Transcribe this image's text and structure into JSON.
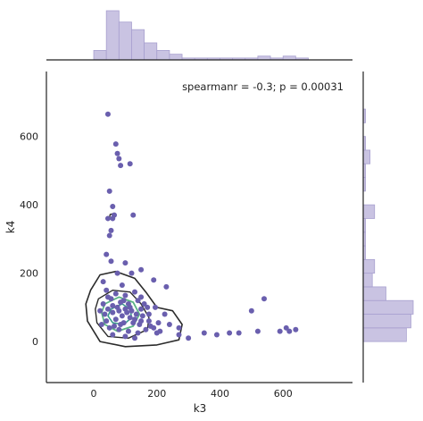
{
  "chart_data": {
    "type": "scatter",
    "title": "",
    "xlabel": "k3",
    "ylabel": "k4",
    "xlim": [
      -150,
      820
    ],
    "ylim": [
      -120,
      790
    ],
    "xticks": [
      0,
      200,
      400,
      600
    ],
    "yticks": [
      0,
      200,
      400,
      600
    ],
    "grid": false,
    "annotation": "spearmanr = -0.3; p = 0.00031",
    "annotation_position": "top-right",
    "marginals": "histogram",
    "colors": {
      "points": "#6a5fae",
      "hist_fill": "#c9c3e2",
      "hist_edge": "#a8a0cf",
      "contour_dark": "#2b2b2b",
      "contour_green": "#5cb585",
      "contour_teal": "#3d9c8c"
    },
    "series": [
      {
        "points": [
          [
            45,
            665
          ],
          [
            70,
            578
          ],
          [
            75,
            550
          ],
          [
            80,
            535
          ],
          [
            85,
            515
          ],
          [
            115,
            520
          ],
          [
            50,
            440
          ],
          [
            45,
            360
          ],
          [
            60,
            360
          ],
          [
            65,
            370
          ],
          [
            125,
            370
          ],
          [
            60,
            395
          ],
          [
            55,
            325
          ],
          [
            50,
            310
          ],
          [
            40,
            255
          ],
          [
            55,
            235
          ],
          [
            100,
            230
          ],
          [
            75,
            200
          ],
          [
            120,
            200
          ],
          [
            150,
            210
          ],
          [
            190,
            180
          ],
          [
            230,
            160
          ],
          [
            195,
            100
          ],
          [
            225,
            80
          ],
          [
            175,
            80
          ],
          [
            150,
            60
          ],
          [
            210,
            30
          ],
          [
            240,
            50
          ],
          [
            270,
            20
          ],
          [
            270,
            40
          ],
          [
            300,
            10
          ],
          [
            350,
            25
          ],
          [
            390,
            20
          ],
          [
            430,
            25
          ],
          [
            460,
            25
          ],
          [
            500,
            90
          ],
          [
            520,
            30
          ],
          [
            540,
            125
          ],
          [
            590,
            30
          ],
          [
            610,
            40
          ],
          [
            620,
            30
          ],
          [
            640,
            35
          ],
          [
            30,
            175
          ],
          [
            90,
            165
          ],
          [
            40,
            150
          ],
          [
            70,
            140
          ],
          [
            100,
            135
          ],
          [
            130,
            145
          ],
          [
            55,
            125
          ],
          [
            85,
            115
          ],
          [
            110,
            110
          ],
          [
            140,
            120
          ],
          [
            160,
            110
          ],
          [
            30,
            110
          ],
          [
            45,
            95
          ],
          [
            75,
            100
          ],
          [
            100,
            95
          ],
          [
            120,
            90
          ],
          [
            150,
            95
          ],
          [
            170,
            100
          ],
          [
            35,
            80
          ],
          [
            60,
            85
          ],
          [
            90,
            75
          ],
          [
            115,
            70
          ],
          [
            135,
            80
          ],
          [
            155,
            75
          ],
          [
            40,
            60
          ],
          [
            70,
            65
          ],
          [
            95,
            55
          ],
          [
            125,
            55
          ],
          [
            145,
            50
          ],
          [
            180,
            45
          ],
          [
            50,
            40
          ],
          [
            80,
            35
          ],
          [
            110,
            30
          ],
          [
            140,
            25
          ],
          [
            165,
            35
          ],
          [
            200,
            25
          ],
          [
            60,
            20
          ],
          [
            100,
            15
          ],
          [
            130,
            10
          ],
          [
            85,
            50
          ],
          [
            65,
            45
          ],
          [
            25,
            50
          ],
          [
            95,
            120
          ],
          [
            105,
            85
          ],
          [
            60,
            105
          ],
          [
            80,
            90
          ],
          [
            115,
            100
          ],
          [
            130,
            65
          ],
          [
            20,
            90
          ],
          [
            45,
            130
          ],
          [
            150,
            130
          ],
          [
            175,
            60
          ],
          [
            190,
            40
          ],
          [
            205,
            55
          ]
        ]
      }
    ]
  }
}
